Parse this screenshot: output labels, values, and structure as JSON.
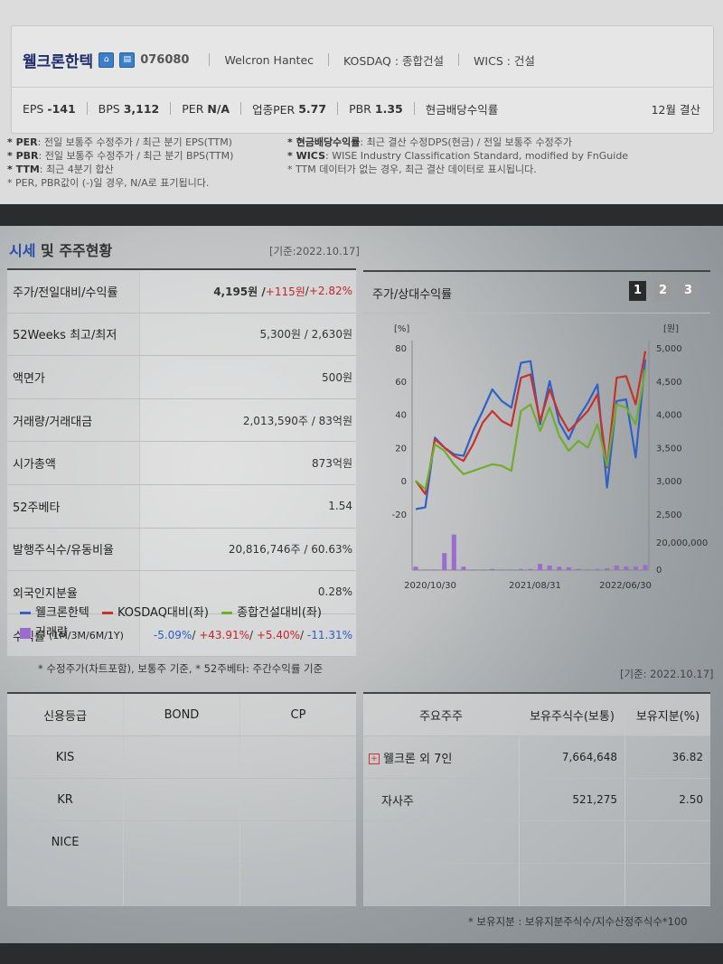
{
  "header": {
    "company_name": "웰크론한텍",
    "code": "076080",
    "english_name": "Welcron Hantec",
    "market": "KOSDAQ : 종합건설",
    "wics": "WICS : 건설",
    "metrics": [
      {
        "label": "EPS",
        "value": "-141"
      },
      {
        "label": "BPS",
        "value": "3,112"
      },
      {
        "label": "PER",
        "value": "N/A"
      },
      {
        "label": "업종PER",
        "value": "5.77"
      },
      {
        "label": "PBR",
        "value": "1.35"
      },
      {
        "label": "현금배당수익률",
        "value": ""
      }
    ],
    "fiscal": "12월 결산"
  },
  "notes": {
    "left": [
      {
        "key": "* PER",
        "text": ": 전일 보통주 수정주가 / 최근 분기 EPS(TTM)"
      },
      {
        "key": "* PBR",
        "text": ": 전일 보통주 수정주가 / 최근 분기 BPS(TTM)"
      },
      {
        "key": "* TTM",
        "text": ": 최근 4분기 합산"
      },
      {
        "key": "",
        "text": "* PER, PBR값이 (-)일 경우, N/A로 표기됩니다."
      }
    ],
    "right": [
      {
        "key": "* 현금배당수익률",
        "text": ": 최근 결산 수정DPS(현금) / 전일 보통주 수정주가"
      },
      {
        "key": "* WICS",
        "text": ": WISE Industry Classification Standard, modified by FnGuide"
      },
      {
        "key": "",
        "text": "* TTM 데이터가 없는 경우, 최근 결산 데이터로 표시됩니다."
      }
    ]
  },
  "section": {
    "title_a": "시세",
    "title_b": " 및 주주현황",
    "date": "[기준:2022.10.17]"
  },
  "price_table": [
    {
      "label": "주가/전일대비/수익률",
      "v1": "4,195원 / ",
      "v2": "+115원",
      "v3": " / ",
      "v4": "+2.82%"
    },
    {
      "label": "52Weeks 최고/최저",
      "v1": "5,300원 / 2,630원"
    },
    {
      "label": "액면가",
      "v1": "500원"
    },
    {
      "label": "거래량/거래대금",
      "v1": "2,013,590주 / 83억원"
    },
    {
      "label": "시가총액",
      "v1": "873억원"
    },
    {
      "label": "52주베타",
      "v1": "1.54"
    },
    {
      "label": "발행주식수/유동비율",
      "v1": "20,816,746주 / 60.63%"
    },
    {
      "label": "외국인지분율",
      "v1": "0.28%"
    },
    {
      "label": "수익률",
      "label_sub": "(1M/3M/6M/1Y)",
      "r1": "-5.09%",
      "r2": "+43.91%",
      "r3": "+5.40%",
      "r4": "-11.31%"
    }
  ],
  "footnote1": "* 수정주가(차트포함), 보통주 기준, * 52주베타: 주간수익률 기준",
  "chart_panel": {
    "title": "주가/상대수익률",
    "buttons": [
      "1",
      "2",
      "3"
    ]
  },
  "chart_data": {
    "type": "line",
    "left_unit": "[%]",
    "right_unit": "[원]",
    "left_ticks": [
      "80",
      "60",
      "40",
      "20",
      "0",
      "-20"
    ],
    "right_ticks": [
      "5,000",
      "4,500",
      "4,000",
      "3,500",
      "3,000",
      "2,500"
    ],
    "volume_ticks": [
      "20,000,000",
      "0"
    ],
    "x_labels": [
      "2020/10/30",
      "2021/08/31",
      "2022/06/30"
    ],
    "ylim_left": [
      -20,
      80
    ],
    "series": [
      {
        "name": "웰크론한텍",
        "color": "#2f61c8",
        "values": [
          -17,
          -16,
          26,
          20,
          16,
          15,
          30,
          42,
          55,
          48,
          44,
          71,
          72,
          34,
          60,
          35,
          25,
          38,
          47,
          58,
          -4,
          48,
          49,
          14,
          73
        ]
      },
      {
        "name": "KOSDAQ대비(좌)",
        "color": "#c8322c",
        "values": [
          0,
          -8,
          25,
          20,
          15,
          12,
          22,
          35,
          42,
          36,
          33,
          62,
          64,
          36,
          55,
          40,
          30,
          36,
          42,
          52,
          8,
          62,
          63,
          46,
          78
        ]
      },
      {
        "name": "종합건설대비(좌)",
        "color": "#6fae2a",
        "values": [
          0,
          -5,
          22,
          18,
          10,
          4,
          6,
          8,
          10,
          9,
          6,
          42,
          46,
          30,
          44,
          27,
          18,
          24,
          20,
          34,
          9,
          46,
          44,
          34,
          67
        ]
      }
    ],
    "volume": {
      "name": "거래량",
      "color": "#9b6bd0",
      "values": [
        0.6,
        0.1,
        0.1,
        3.0,
        6.3,
        0.6,
        0.1,
        0.1,
        0.2,
        0.1,
        0.1,
        0.2,
        0.2,
        1.1,
        0.8,
        0.6,
        0.5,
        0.2,
        0.1,
        0.2,
        0.3,
        0.8,
        0.6,
        0.6,
        0.9
      ],
      "max": 8
    }
  },
  "date2": "[기준: 2022.10.17]",
  "credit_table": {
    "headers": [
      "신용등급",
      "BOND",
      "CP"
    ],
    "rows": [
      [
        "KIS",
        "",
        ""
      ],
      [
        "KR",
        "",
        ""
      ],
      [
        "NICE",
        "",
        ""
      ],
      [
        "",
        "",
        ""
      ]
    ]
  },
  "holders_table": {
    "headers": [
      "주요주주",
      "보유주식수(보통)",
      "보유지분(%)"
    ],
    "rows": [
      {
        "name": "웰크론 외 7인",
        "shares": "7,664,648",
        "pct": "36.82",
        "expand": true
      },
      {
        "name": "자사주",
        "shares": "521,275",
        "pct": "2.50",
        "expand": false
      },
      {
        "name": "",
        "shares": "",
        "pct": "",
        "expand": false
      },
      {
        "name": "",
        "shares": "",
        "pct": "",
        "expand": false
      }
    ]
  },
  "footnote2": "* 보유지분 : 보유지분주식수/지수산정주식수*100"
}
